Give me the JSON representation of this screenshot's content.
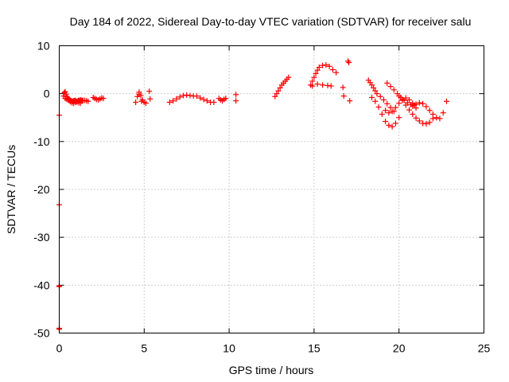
{
  "chart_data": {
    "type": "scatter",
    "title": "Day 184 of 2022, Sidereal Day-to-day VTEC variation (SDTVAR) for receiver salu",
    "xlabel": "GPS time / hours",
    "ylabel": "SDTVAR / TECUs",
    "xlim": [
      0,
      25
    ],
    "ylim": [
      -50,
      10
    ],
    "xticks": [
      0,
      5,
      10,
      15,
      20,
      25
    ],
    "yticks": [
      10,
      0,
      -10,
      -20,
      -30,
      -40,
      -50
    ],
    "grid": true,
    "marker": "plus",
    "series": [
      {
        "name": "SDTVAR",
        "color": "#ff0000",
        "x": [
          0.0,
          0.0,
          0.0,
          0.0,
          0.0,
          0.0,
          0.25,
          0.3,
          0.35,
          0.4,
          0.45,
          0.5,
          0.55,
          0.6,
          0.65,
          0.7,
          0.75,
          0.8,
          0.85,
          0.9,
          0.95,
          1.0,
          1.05,
          1.1,
          1.15,
          1.2,
          1.25,
          1.3,
          1.35,
          1.4,
          1.5,
          1.6,
          1.7,
          0.35,
          0.45,
          0.55,
          0.65,
          0.75,
          0.85,
          0.95,
          1.05,
          1.15,
          1.25,
          2.0,
          2.1,
          2.2,
          2.3,
          2.4,
          2.5,
          2.6,
          4.5,
          4.6,
          4.7,
          4.8,
          4.9,
          5.0,
          5.1,
          4.7,
          4.85,
          5.3,
          5.35,
          6.5,
          6.7,
          6.9,
          7.1,
          7.3,
          7.5,
          7.7,
          7.9,
          8.1,
          8.3,
          8.5,
          8.7,
          8.9,
          9.1,
          9.4,
          9.5,
          9.6,
          9.7,
          9.8,
          10.4,
          10.4,
          12.7,
          12.8,
          12.9,
          13.0,
          13.1,
          13.2,
          13.3,
          13.4,
          13.5,
          14.8,
          14.9,
          15.0,
          15.1,
          15.2,
          15.3,
          15.5,
          15.7,
          15.9,
          16.1,
          16.3,
          14.9,
          15.2,
          15.5,
          15.8,
          16.0,
          16.7,
          16.75,
          17.0,
          17.05,
          17.1,
          18.2,
          18.3,
          18.4,
          18.5,
          18.6,
          18.7,
          18.9,
          19.1,
          19.3,
          19.5,
          19.7,
          18.4,
          18.6,
          18.8,
          19.0,
          19.2,
          19.4,
          19.6,
          19.8,
          20.0,
          19.3,
          19.5,
          19.7,
          19.9,
          20.1,
          20.3,
          20.5,
          20.7,
          20.9,
          20.0,
          20.2,
          20.4,
          20.6,
          20.8,
          21.0,
          21.2,
          21.4,
          21.6,
          21.8,
          22.0,
          20.8,
          21.0,
          21.2,
          21.4,
          21.6,
          21.8,
          22.0,
          22.2,
          22.4,
          22.6,
          22.8,
          19.2,
          19.4,
          19.6,
          19.8,
          20.0,
          20.2,
          20.4,
          20.6,
          20.8,
          21.0
        ],
        "y": [
          -4.5,
          -23.2,
          -40.1,
          -40.3,
          -49.0,
          -49.2,
          -0.5,
          0.2,
          0.4,
          -0.1,
          -0.6,
          -0.9,
          -1.1,
          -1.3,
          -1.4,
          -1.5,
          -1.6,
          -1.6,
          -1.5,
          -1.5,
          -1.4,
          -1.6,
          -1.7,
          -1.5,
          -1.4,
          -1.5,
          -1.3,
          -1.4,
          -1.5,
          -1.4,
          -1.4,
          -1.5,
          -1.6,
          -1.0,
          -1.2,
          -1.4,
          -1.7,
          -1.9,
          -2.0,
          -1.8,
          -1.7,
          -1.9,
          -2.0,
          -0.8,
          -1.0,
          -1.2,
          -1.3,
          -1.1,
          -0.9,
          -1.0,
          -1.8,
          -0.6,
          0.3,
          -0.4,
          -1.3,
          -1.8,
          -2.0,
          -0.1,
          -1.6,
          0.5,
          -1.1,
          -1.8,
          -1.5,
          -1.1,
          -0.7,
          -0.4,
          -0.3,
          -0.4,
          -0.5,
          -0.5,
          -0.9,
          -1.2,
          -1.5,
          -1.8,
          -1.8,
          -1.0,
          -1.3,
          -1.5,
          -1.2,
          -1.0,
          -0.2,
          -1.5,
          -0.6,
          0.0,
          0.6,
          1.2,
          1.8,
          2.2,
          2.6,
          3.0,
          3.4,
          1.8,
          2.6,
          3.4,
          4.2,
          4.9,
          5.5,
          5.9,
          6.0,
          5.7,
          5.0,
          4.4,
          1.6,
          2.0,
          1.8,
          1.7,
          1.6,
          1.3,
          -0.5,
          6.8,
          6.5,
          -1.5,
          2.8,
          2.3,
          1.8,
          1.2,
          0.6,
          0.0,
          -0.6,
          -1.3,
          -2.1,
          -2.9,
          -3.7,
          -0.8,
          -1.6,
          -2.8,
          -4.3,
          -5.8,
          -6.6,
          -6.9,
          -6.2,
          -5.0,
          2.2,
          1.5,
          0.8,
          0.0,
          -0.8,
          -1.4,
          -1.9,
          -2.3,
          -2.4,
          -0.5,
          -1.4,
          -2.4,
          -3.4,
          -4.3,
          -5.1,
          -5.7,
          -6.2,
          -6.3,
          -6.0,
          -5.2,
          -2.6,
          -2.2,
          -1.9,
          -2.1,
          -2.7,
          -3.5,
          -4.3,
          -5.0,
          -5.2,
          -4.0,
          -1.6,
          -3.5,
          -4.0,
          -3.7,
          -2.9,
          -2.0,
          -1.2,
          -0.9,
          -1.3,
          -2.0,
          -3.0
        ]
      }
    ]
  }
}
